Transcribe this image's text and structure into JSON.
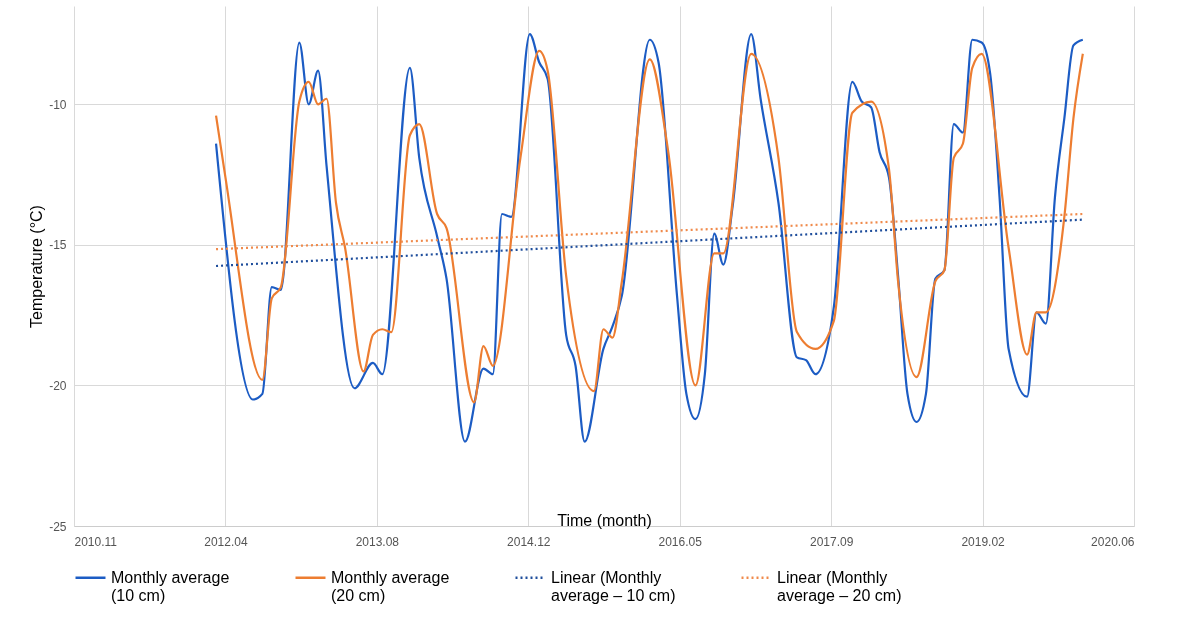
{
  "chart_data": {
    "type": "line",
    "xlabel": "Time (month)",
    "ylabel": "Temperature (°C)",
    "xlim": [
      "2010-11-18",
      "2020-06-18"
    ],
    "xticks": [
      {
        "value": "2010-11-18",
        "label": "2010.11"
      },
      {
        "value": "2012-04-01",
        "label": "2012.04"
      },
      {
        "value": "2013-08-14",
        "label": "2013.08"
      },
      {
        "value": "2014-12-27",
        "label": "2014.12"
      },
      {
        "value": "2016-05-10",
        "label": "2016.05"
      },
      {
        "value": "2017-09-22",
        "label": "2017.09"
      },
      {
        "value": "2019-02-04",
        "label": "2019.02"
      },
      {
        "value": "2020-06-18",
        "label": "2020.06"
      }
    ],
    "ylim": [
      -25,
      -6.5
    ],
    "yticks": [
      -25,
      -20,
      -15,
      -10
    ],
    "grid": true,
    "legend": "bottom",
    "marker": "none",
    "series": [
      {
        "name": "Monthly average (10 cm)",
        "line_style": "solid",
        "color": "#1c5cc4",
        "x": [
          "2012-03",
          "2012-07",
          "2012-08",
          "2012-09",
          "2012-10",
          "2012-12",
          "2013-01",
          "2013-02",
          "2013-03",
          "2013-06",
          "2013-08",
          "2013-09",
          "2013-12",
          "2014-01",
          "2014-03",
          "2014-04",
          "2014-06",
          "2014-08",
          "2014-09",
          "2014-10",
          "2014-11",
          "2015-01",
          "2015-02",
          "2015-03",
          "2015-05",
          "2015-06",
          "2015-07",
          "2015-09",
          "2015-10",
          "2015-11",
          "2016-02",
          "2016-03",
          "2016-05",
          "2016-06",
          "2016-07",
          "2016-08",
          "2016-09",
          "2016-10",
          "2016-11",
          "2017-01",
          "2017-02",
          "2017-04",
          "2017-06",
          "2017-07",
          "2017-08",
          "2017-10",
          "2017-12",
          "2018-01",
          "2018-02",
          "2018-03",
          "2018-04",
          "2018-05",
          "2018-06",
          "2018-07",
          "2018-08",
          "2018-09",
          "2018-10",
          "2018-11",
          "2018-12",
          "2019-01",
          "2019-02",
          "2019-03",
          "2019-04",
          "2019-05",
          "2019-07",
          "2019-08",
          "2019-09",
          "2019-10",
          "2019-11",
          "2019-12",
          "2020-01"
        ],
        "values": [
          -11.4,
          -20.5,
          -20.3,
          -16.5,
          -16.6,
          -7.8,
          -10.0,
          -8.8,
          -12.2,
          -20.1,
          -19.2,
          -19.6,
          -8.7,
          -11.9,
          -14.7,
          -16.2,
          -22.0,
          -19.4,
          -19.6,
          -13.9,
          -14.0,
          -7.5,
          -8.5,
          -9.1,
          -18.2,
          -19.3,
          -22.0,
          -18.7,
          -17.9,
          -16.8,
          -7.7,
          -8.5,
          -16.8,
          -20.3,
          -21.2,
          -19.6,
          -14.6,
          -15.7,
          -13.6,
          -7.5,
          -9.8,
          -13.5,
          -19.0,
          -19.1,
          -19.6,
          -17.2,
          -9.2,
          -9.9,
          -10.1,
          -11.7,
          -12.6,
          -16.1,
          -20.3,
          -21.3,
          -20.3,
          -16.2,
          -15.9,
          -10.7,
          -11.0,
          -7.7,
          -7.8,
          -8.9,
          -13.3,
          -18.7,
          -20.4,
          -17.4,
          -17.8,
          -13.3,
          -10.5,
          -7.9,
          -7.7
        ]
      },
      {
        "name": "Monthly average (20 cm)",
        "line_style": "solid",
        "color": "#ed7d31",
        "x": [
          "2012-03",
          "2012-04",
          "2012-08",
          "2012-09",
          "2012-10",
          "2012-12",
          "2013-01",
          "2013-02",
          "2013-03",
          "2013-04",
          "2013-05",
          "2013-07",
          "2013-08",
          "2013-09",
          "2013-10",
          "2013-12",
          "2014-01",
          "2014-03",
          "2014-04",
          "2014-07",
          "2014-08",
          "2014-09",
          "2014-12",
          "2015-02",
          "2015-03",
          "2015-05",
          "2015-08",
          "2015-09",
          "2015-10",
          "2015-11",
          "2016-02",
          "2016-04",
          "2016-07",
          "2016-09",
          "2016-10",
          "2017-01",
          "2017-04",
          "2017-06",
          "2017-08",
          "2017-10",
          "2017-12",
          "2018-02",
          "2018-04",
          "2018-05",
          "2018-07",
          "2018-09",
          "2018-10",
          "2018-11",
          "2018-12",
          "2019-01",
          "2019-02",
          "2019-05",
          "2019-07",
          "2019-08",
          "2019-09",
          "2019-11",
          "2019-12",
          "2020-01"
        ],
        "values": [
          -10.4,
          -12.6,
          -19.8,
          -16.9,
          -16.5,
          -9.9,
          -9.2,
          -10.0,
          -9.8,
          -13.5,
          -15.1,
          -19.5,
          -18.2,
          -18.0,
          -18.1,
          -11.1,
          -10.7,
          -13.9,
          -14.4,
          -20.6,
          -18.6,
          -19.3,
          -11.9,
          -8.1,
          -8.8,
          -16.1,
          -20.2,
          -18.0,
          -18.3,
          -16.3,
          -8.4,
          -11.6,
          -20.0,
          -15.3,
          -15.3,
          -8.2,
          -11.9,
          -18.1,
          -18.7,
          -17.7,
          -10.3,
          -9.9,
          -12.3,
          -16.3,
          -19.7,
          -16.3,
          -15.9,
          -11.9,
          -11.4,
          -8.7,
          -8.2,
          -15.1,
          -18.9,
          -17.4,
          -17.4,
          -14.0,
          -10.5,
          -8.2
        ]
      },
      {
        "name": "Linear (Monthly average – 10 cm)",
        "line_style": "dotted",
        "color": "#1f4e9c",
        "x": [
          "2012-03",
          "2020-01"
        ],
        "values": [
          -15.75,
          -14.1
        ]
      },
      {
        "name": "Linear (Monthly average – 20 cm)",
        "line_style": "dotted",
        "color": "#f08a4b",
        "x": [
          "2012-03",
          "2020-01"
        ],
        "values": [
          -15.15,
          -13.9
        ]
      }
    ]
  }
}
